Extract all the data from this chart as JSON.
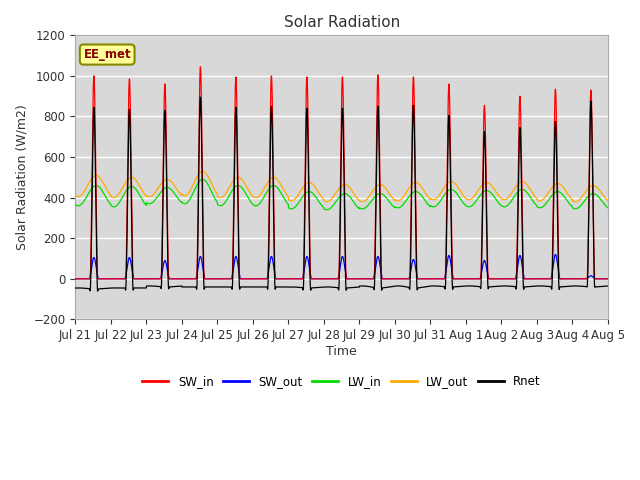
{
  "title": "Solar Radiation",
  "ylabel": "Solar Radiation (W/m2)",
  "xlabel": "Time",
  "ylim": [
    -200,
    1200
  ],
  "annotation": "EE_met",
  "x_tick_labels": [
    "Jul 21",
    "Jul 22",
    "Jul 23",
    "Jul 24",
    "Jul 25",
    "Jul 26",
    "Jul 27",
    "Jul 28",
    "Jul 29",
    "Jul 30",
    "Jul 31",
    "Aug 1",
    "Aug 2",
    "Aug 3",
    "Aug 4",
    "Aug 5"
  ],
  "n_days": 15,
  "SW_in_peaks": [
    1000,
    985,
    960,
    1045,
    995,
    1000,
    995,
    995,
    1005,
    995,
    960,
    855,
    900,
    935,
    930
  ],
  "SW_out_peaks": [
    105,
    105,
    90,
    110,
    110,
    110,
    110,
    110,
    110,
    95,
    115,
    90,
    115,
    120,
    15
  ],
  "LW_in_day_peaks": [
    460,
    455,
    450,
    490,
    460,
    460,
    430,
    420,
    420,
    430,
    440,
    435,
    440,
    430,
    420
  ],
  "LW_in_night_vals": [
    360,
    355,
    370,
    370,
    360,
    360,
    345,
    340,
    345,
    350,
    355,
    355,
    355,
    350,
    345
  ],
  "LW_out_day_peaks": [
    510,
    500,
    490,
    530,
    500,
    500,
    475,
    465,
    465,
    475,
    480,
    475,
    480,
    470,
    460
  ],
  "LW_out_night_vals": [
    405,
    400,
    405,
    410,
    400,
    400,
    385,
    380,
    380,
    385,
    390,
    390,
    390,
    385,
    380
  ],
  "Rnet_night": -55,
  "plot_bg": "#d8d8d8",
  "fig_bg": "#ffffff",
  "grid_color": "#ffffff",
  "SW_in_color": "#ff0000",
  "SW_out_color": "#0000ff",
  "LW_in_color": "#00dd00",
  "LW_out_color": "#ffaa00",
  "Rnet_color": "#000000",
  "annotation_bg": "#ffff99",
  "annotation_border": "#888800",
  "annotation_text_color": "#880000"
}
